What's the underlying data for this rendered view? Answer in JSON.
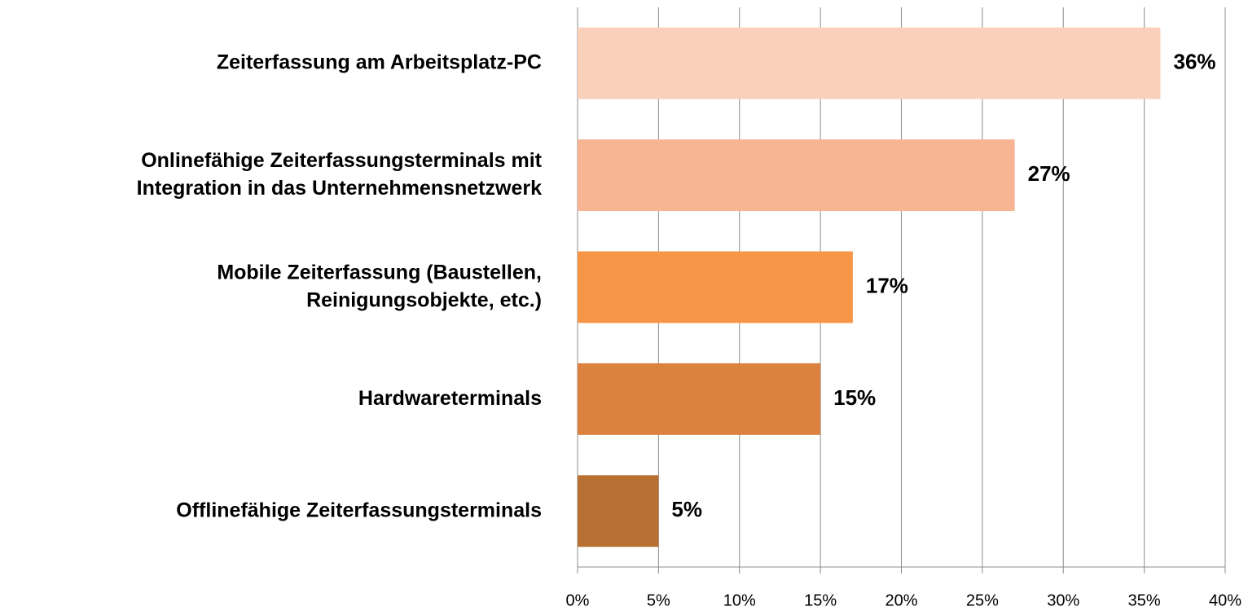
{
  "chart_data": {
    "type": "barh",
    "categories": [
      "Zeiterfassung am Arbeitsplatz-PC",
      "Onlinefähige Zeiterfassungsterminals mit\nIntegration in das Unternehmensnetzwerk",
      "Mobile Zeiterfassung (Baustellen,\nReinigungsobjekte, etc.)",
      "Hardwareterminals",
      "Offlinefähige Zeiterfassungsterminals"
    ],
    "values": [
      36,
      27,
      17,
      15,
      5
    ],
    "value_labels": [
      "36%",
      "27%",
      "17%",
      "15%",
      "5%"
    ],
    "colors": [
      "#fbd0bb",
      "#f8b593",
      "#f79646",
      "#db8240",
      "#b87032"
    ],
    "xlim": [
      0,
      40
    ],
    "xticks": [
      {
        "value": 0,
        "label": "0%"
      },
      {
        "value": 5,
        "label": "5%"
      },
      {
        "value": 10,
        "label": "10%"
      },
      {
        "value": 15,
        "label": "15%"
      },
      {
        "value": 20,
        "label": "20%"
      },
      {
        "value": 25,
        "label": "25%"
      },
      {
        "value": 30,
        "label": "30%"
      },
      {
        "value": 35,
        "label": "35%"
      },
      {
        "value": 40,
        "label": "40%"
      }
    ],
    "grid": true
  }
}
